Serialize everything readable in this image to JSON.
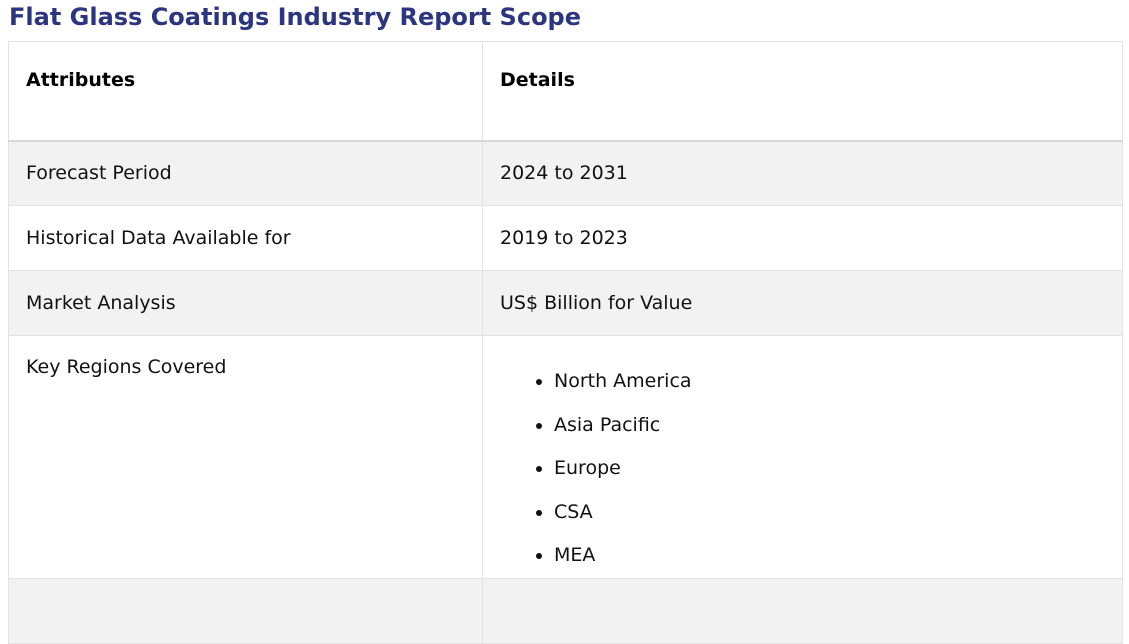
{
  "title": "Flat Glass Coatings Industry Report Scope",
  "table": {
    "headers": [
      "Attributes",
      "Details"
    ],
    "rows": [
      {
        "attribute": "Forecast Period",
        "detail": "2024 to 2031"
      },
      {
        "attribute": "Historical Data Available for",
        "detail": "2019 to 2023"
      },
      {
        "attribute": "Market Analysis",
        "detail": "US$ Billion for Value"
      }
    ],
    "regions": {
      "attribute": "Key Regions Covered",
      "items": [
        "North America",
        "Asia Pacific",
        "Europe",
        "CSA",
        "MEA"
      ]
    }
  },
  "colors": {
    "title": "#2b3580",
    "shaded_row": "#f2f2f2",
    "border": "#e2e2e2"
  }
}
